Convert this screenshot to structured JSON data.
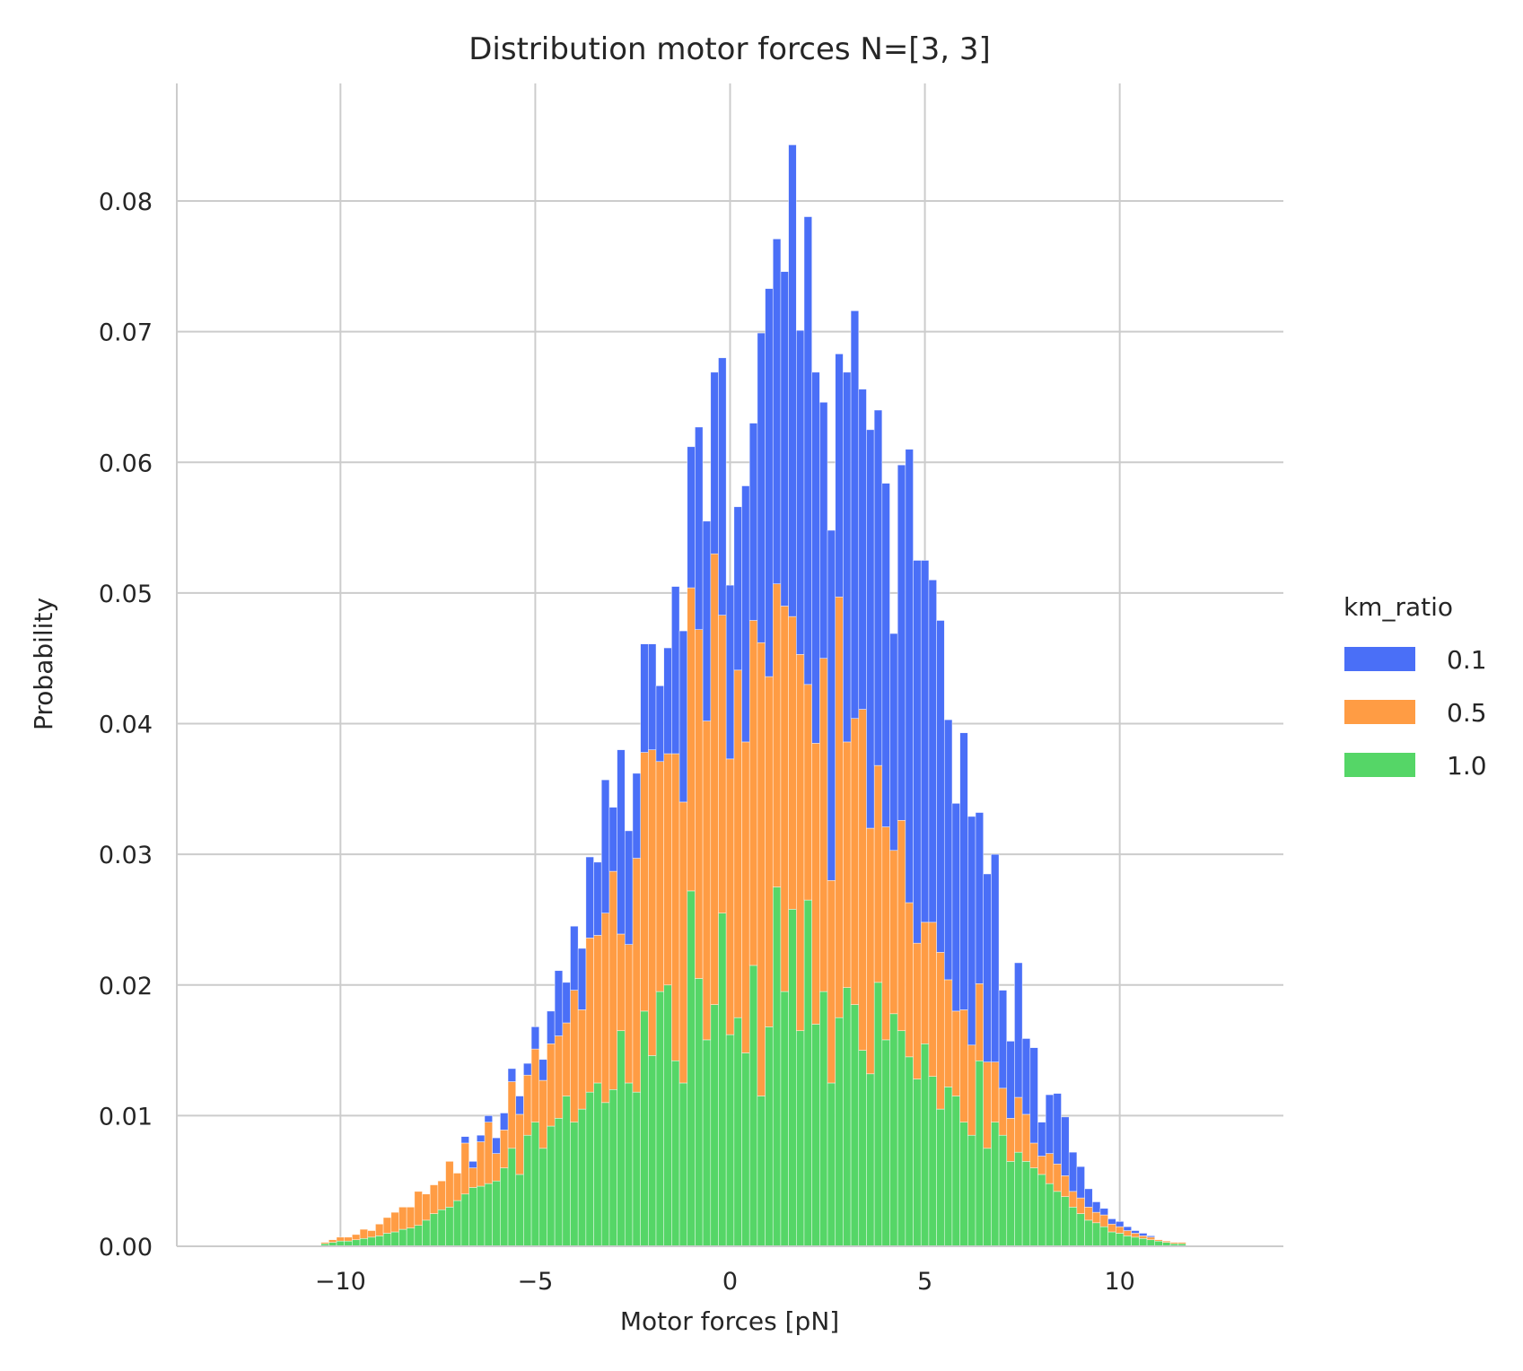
{
  "chart_data": {
    "type": "bar",
    "stacked": true,
    "title": "Distribution motor forces N=[3, 3]",
    "xlabel": "Motor forces [pN]",
    "ylabel": "Probability",
    "xlim": [
      -14.2,
      14.2
    ],
    "ylim": [
      0,
      0.089
    ],
    "xticks": [
      -10,
      -5,
      0,
      5,
      10
    ],
    "xtick_labels": [
      "−10",
      "−5",
      "0",
      "5",
      "10"
    ],
    "yticks": [
      0.0,
      0.01,
      0.02,
      0.03,
      0.04,
      0.05,
      0.06,
      0.07,
      0.08
    ],
    "ytick_labels": [
      "0.00",
      "0.01",
      "0.02",
      "0.03",
      "0.04",
      "0.05",
      "0.06",
      "0.07",
      "0.08"
    ],
    "grid": true,
    "bin_start": -10.5,
    "bin_width": 0.2,
    "legend": {
      "title": "km_ratio",
      "placement": "right",
      "entries": [
        "0.1",
        "0.5",
        "1.0"
      ]
    },
    "colors": {
      "0.1": "#4a6ff7",
      "0.5": "#ff9c44",
      "1.0": "#55d667",
      "grid": "#cccccc",
      "spine": "#cccccc"
    },
    "series": [
      {
        "name": "1.0",
        "values": [
          0.0002,
          0.0003,
          0.0004,
          0.0004,
          0.0005,
          0.0006,
          0.0007,
          0.0008,
          0.001,
          0.0011,
          0.0013,
          0.0014,
          0.0016,
          0.002,
          0.0025,
          0.0028,
          0.003,
          0.0035,
          0.004,
          0.0045,
          0.0046,
          0.0048,
          0.005,
          0.006,
          0.0075,
          0.0055,
          0.0085,
          0.0095,
          0.0075,
          0.0092,
          0.0098,
          0.0115,
          0.0095,
          0.0105,
          0.0118,
          0.0125,
          0.011,
          0.012,
          0.0165,
          0.0125,
          0.0118,
          0.018,
          0.0146,
          0.0195,
          0.02,
          0.0142,
          0.0125,
          0.0272,
          0.0205,
          0.0158,
          0.0185,
          0.0255,
          0.0162,
          0.0175,
          0.0148,
          0.0215,
          0.0115,
          0.0168,
          0.0275,
          0.0195,
          0.0258,
          0.0165,
          0.0265,
          0.017,
          0.0195,
          0.0125,
          0.0175,
          0.0198,
          0.0185,
          0.015,
          0.0132,
          0.0202,
          0.0158,
          0.0178,
          0.0165,
          0.0145,
          0.0128,
          0.0155,
          0.013,
          0.0105,
          0.0122,
          0.0115,
          0.0095,
          0.0085,
          0.0142,
          0.0075,
          0.0095,
          0.0085,
          0.0065,
          0.0072,
          0.0065,
          0.006,
          0.0055,
          0.0048,
          0.0042,
          0.0038,
          0.003,
          0.0025,
          0.002,
          0.0018,
          0.0015,
          0.0011,
          0.001,
          0.0008,
          0.0007,
          0.0006,
          0.0005,
          0.0004,
          0.0003,
          0.0002,
          0.0002
        ]
      },
      {
        "name": "0.5",
        "values": [
          0.0001,
          0.0002,
          0.0003,
          0.0003,
          0.0004,
          0.0007,
          0.0005,
          0.0009,
          0.0012,
          0.0015,
          0.0017,
          0.0016,
          0.0026,
          0.002,
          0.0022,
          0.0022,
          0.0035,
          0.0021,
          0.0039,
          0.0015,
          0.0034,
          0.0047,
          0.0021,
          0.0029,
          0.0051,
          0.0046,
          0.0046,
          0.0056,
          0.0052,
          0.0063,
          0.0063,
          0.0056,
          0.0101,
          0.0076,
          0.0118,
          0.0113,
          0.0145,
          0.0167,
          0.0074,
          0.0106,
          0.0179,
          0.0198,
          0.0234,
          0.0176,
          0.0177,
          0.0235,
          0.0215,
          0.0232,
          0.0267,
          0.0244,
          0.0345,
          0.0228,
          0.0211,
          0.0266,
          0.0238,
          0.0264,
          0.0347,
          0.0268,
          0.0232,
          0.0295,
          0.0224,
          0.0288,
          0.0165,
          0.0215,
          0.0255,
          0.0155,
          0.0322,
          0.0188,
          0.0219,
          0.0261,
          0.0188,
          0.0166,
          0.0163,
          0.0125,
          0.0161,
          0.0118,
          0.0104,
          0.0093,
          0.0118,
          0.012,
          0.0082,
          0.0065,
          0.0086,
          0.0069,
          0.0059,
          0.0066,
          0.0046,
          0.0036,
          0.0033,
          0.0042,
          0.0036,
          0.0019,
          0.0014,
          0.0023,
          0.0021,
          0.0016,
          0.0012,
          0.0012,
          0.001,
          0.0008,
          0.0009,
          0.0006,
          0.0005,
          0.0004,
          0.0003,
          0.0002,
          0.0002,
          0.0001,
          0.0001,
          0.0001,
          0.0001
        ]
      },
      {
        "name": "0.1",
        "values": [
          0.0,
          0.0,
          0.0,
          0.0,
          0.0,
          0.0,
          0.0,
          0.0,
          0.0,
          0.0,
          0.0,
          0.0,
          0.0,
          0.0,
          0.0,
          0.0,
          0.0,
          0.0,
          0.0005,
          0.0005,
          0.0005,
          0.0005,
          0.0012,
          0.0013,
          0.001,
          0.0014,
          0.0009,
          0.0017,
          0.0016,
          0.0025,
          0.005,
          0.0031,
          0.0049,
          0.0047,
          0.0062,
          0.0056,
          0.0102,
          0.0049,
          0.0141,
          0.0087,
          0.0065,
          0.0083,
          0.0081,
          0.0058,
          0.0081,
          0.0128,
          0.0131,
          0.0108,
          0.0155,
          0.0153,
          0.0139,
          0.0197,
          0.0133,
          0.0125,
          0.0196,
          0.0151,
          0.0237,
          0.0297,
          0.0264,
          0.0256,
          0.0361,
          0.0248,
          0.0358,
          0.0284,
          0.0196,
          0.0268,
          0.0186,
          0.0283,
          0.0312,
          0.0245,
          0.0305,
          0.0272,
          0.0263,
          0.0166,
          0.0272,
          0.0347,
          0.0293,
          0.0277,
          0.0262,
          0.0254,
          0.0199,
          0.0159,
          0.0212,
          0.0175,
          0.0131,
          0.0144,
          0.0159,
          0.0075,
          0.0059,
          0.0103,
          0.0058,
          0.0073,
          0.0026,
          0.0045,
          0.0054,
          0.0045,
          0.003,
          0.0024,
          0.0014,
          0.0008,
          0.0005,
          0.0004,
          0.0004,
          0.0003,
          0.0002,
          0.0002,
          0.0001,
          0.0,
          0.0,
          0.0,
          0.0
        ]
      }
    ]
  }
}
